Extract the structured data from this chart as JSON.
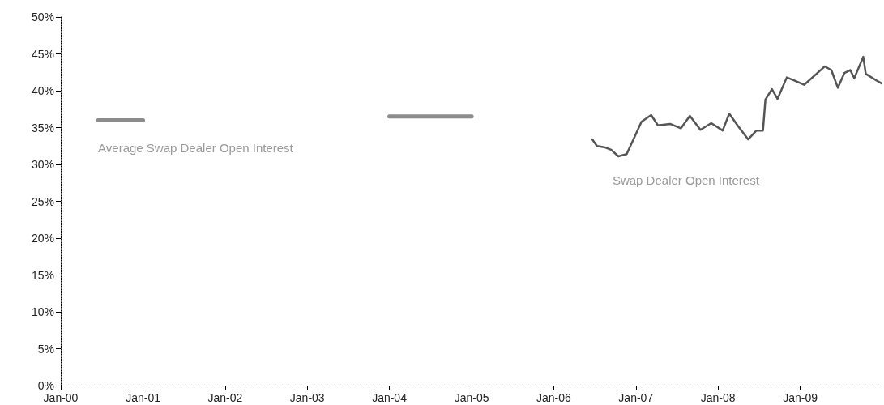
{
  "chart_data": {
    "type": "line",
    "series": [
      {
        "name": "Average Swap Dealer Open Interest",
        "color": "#8c8c8c",
        "x": [
          "2000-06-15",
          "2001-01-01",
          "2003-01-01",
          "2004-01-01",
          "2005-01-01"
        ],
        "values": [
          36,
          36,
          null,
          36.5,
          36.5
        ]
      },
      {
        "name": "Swap Dealer Open Interest",
        "color": "#555555",
        "x": [
          "2006-06-21",
          "2006-07-12",
          "2006-08-18",
          "2006-09-13",
          "2006-10-15",
          "2006-11-21",
          "2006-12-27",
          "2007-01-26",
          "2007-03-10",
          "2007-04-09",
          "2007-06-02",
          "2007-07-20",
          "2007-08-29",
          "2007-10-15",
          "2007-12-02",
          "2008-01-22",
          "2008-02-20",
          "2008-03-28",
          "2008-05-14",
          "2008-06-20",
          "2008-07-19",
          "2008-07-30",
          "2008-08-28",
          "2008-09-22",
          "2008-11-02",
          "2008-11-27",
          "2009-01-18",
          "2009-03-14",
          "2009-04-20",
          "2009-05-19",
          "2009-06-17",
          "2009-07-16",
          "2009-08-11",
          "2009-08-29",
          "2009-10-08",
          "2009-10-19",
          "2009-12-05",
          "2009-12-28"
        ],
        "values": [
          33.4,
          32.5,
          32.3,
          32.0,
          31.1,
          31.4,
          33.8,
          35.8,
          36.7,
          35.3,
          35.5,
          34.9,
          36.6,
          34.7,
          35.6,
          34.6,
          36.9,
          35.3,
          33.4,
          34.6,
          34.6,
          38.8,
          40.2,
          38.9,
          41.8,
          41.5,
          40.8,
          42.3,
          43.3,
          42.8,
          40.4,
          42.4,
          42.8,
          41.7,
          44.6,
          42.3,
          41.4,
          41.0
        ]
      }
    ],
    "xlim": [
      "2000-01-01",
      "2010-01-01"
    ],
    "xticks": [
      {
        "value": "2000-01-01",
        "label": "Jan-00"
      },
      {
        "value": "2001-01-01",
        "label": "Jan-01"
      },
      {
        "value": "2002-01-01",
        "label": "Jan-02"
      },
      {
        "value": "2003-01-01",
        "label": "Jan-03"
      },
      {
        "value": "2004-01-01",
        "label": "Jan-04"
      },
      {
        "value": "2005-01-01",
        "label": "Jan-05"
      },
      {
        "value": "2006-01-01",
        "label": "Jan-06"
      },
      {
        "value": "2007-01-01",
        "label": "Jan-07"
      },
      {
        "value": "2008-01-01",
        "label": "Jan-08"
      },
      {
        "value": "2009-01-01",
        "label": "Jan-09"
      }
    ],
    "ylim": [
      0,
      50
    ],
    "yticks": [
      {
        "value": 0,
        "label": "0%"
      },
      {
        "value": 5,
        "label": "5%"
      },
      {
        "value": 10,
        "label": "10%"
      },
      {
        "value": 15,
        "label": "15%"
      },
      {
        "value": 20,
        "label": "20%"
      },
      {
        "value": 25,
        "label": "25%"
      },
      {
        "value": 30,
        "label": "30%"
      },
      {
        "value": 35,
        "label": "35%"
      },
      {
        "value": 40,
        "label": "40%"
      },
      {
        "value": 45,
        "label": "45%"
      },
      {
        "value": 50,
        "label": "50%"
      }
    ],
    "grid": false,
    "legend": false,
    "marker": "none",
    "line_style": "solid"
  }
}
